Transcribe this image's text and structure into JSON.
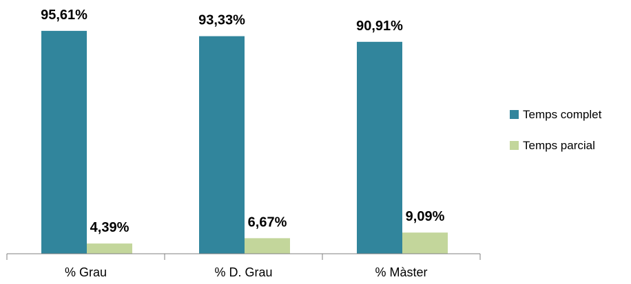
{
  "chart_data": {
    "type": "bar",
    "categories": [
      "% Grau",
      "% D. Grau",
      "% Màster"
    ],
    "series": [
      {
        "name": "Temps complet",
        "values": [
          95.61,
          93.33,
          90.91
        ],
        "labels": [
          "95,61%",
          "93,33%",
          "90,91%"
        ],
        "color": "#31859c"
      },
      {
        "name": "Temps parcial",
        "values": [
          4.39,
          6.67,
          9.09
        ],
        "labels": [
          "4,39%",
          "6,67%",
          "9,09%"
        ],
        "color": "#c3d69b"
      }
    ],
    "ylim": [
      0,
      100
    ],
    "grid": false,
    "legend_position": "right"
  }
}
